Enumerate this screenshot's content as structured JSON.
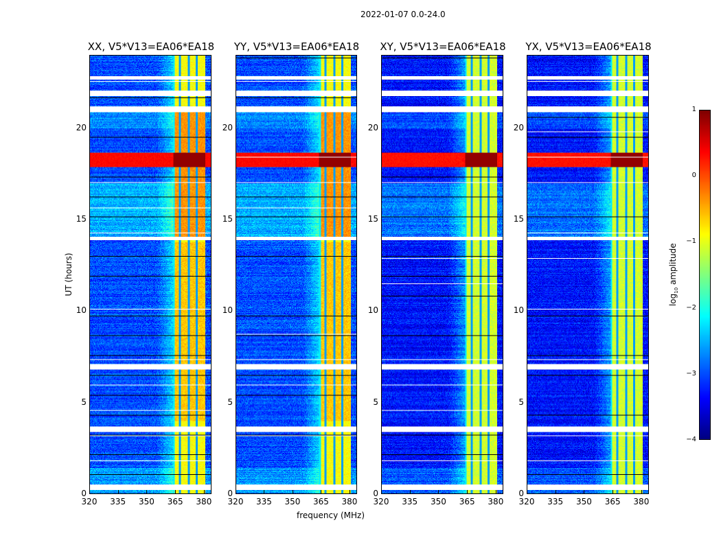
{
  "chart_data": {
    "type": "heatmap",
    "suptitle": "2022-01-07 0.0-24.0",
    "xlabel": "frequency (MHz)",
    "ylabel": "UT (hours)",
    "xlim": [
      320,
      384
    ],
    "ylim": [
      0,
      24
    ],
    "xticks": [
      320,
      335,
      350,
      365,
      380
    ],
    "yticks": [
      0,
      5,
      10,
      15,
      20
    ],
    "panels": [
      {
        "title": "XX, V5*V13=EA06*EA18",
        "pol": "XX"
      },
      {
        "title": "YY, V5*V13=EA06*EA18",
        "pol": "YY"
      },
      {
        "title": "XY, V5*V13=EA06*EA18",
        "pol": "XY"
      },
      {
        "title": "YX, V5*V13=EA06*EA18",
        "pol": "YX"
      }
    ],
    "colorbar": {
      "label": "log10 amplitude",
      "label_main": "log",
      "label_sub": "10",
      "label_rest": " amplitude",
      "colormap": "jet",
      "range": [
        -4,
        1
      ],
      "ticks": [
        1,
        0,
        -1,
        -2,
        -3,
        -4
      ],
      "tick_labels": [
        "1",
        "0",
        "−1",
        "−2",
        "−3",
        "−4"
      ]
    },
    "features": {
      "rfi_band_mhz": [
        364,
        381
      ],
      "rfi_subband_gaps_mhz": [
        367.5,
        372,
        376.5
      ],
      "strong_broadband_rfi_hours": [
        17.9,
        18.7
      ],
      "flagged_gap_hours": [
        [
          0.2,
          0.5
        ],
        [
          3.4,
          3.7
        ],
        [
          6.8,
          7.1
        ],
        [
          13.9,
          14.1
        ],
        [
          20.9,
          21.2
        ],
        [
          21.8,
          22.1
        ],
        [
          22.7,
          22.9
        ]
      ],
      "enhanced_hours": [
        [
          14.1,
          17.0
        ],
        [
          20.0,
          20.9
        ]
      ]
    },
    "tick_labels_x": [
      "320",
      "335",
      "350",
      "365",
      "380"
    ],
    "tick_labels_y": [
      "0",
      "5",
      "10",
      "15",
      "20"
    ]
  }
}
